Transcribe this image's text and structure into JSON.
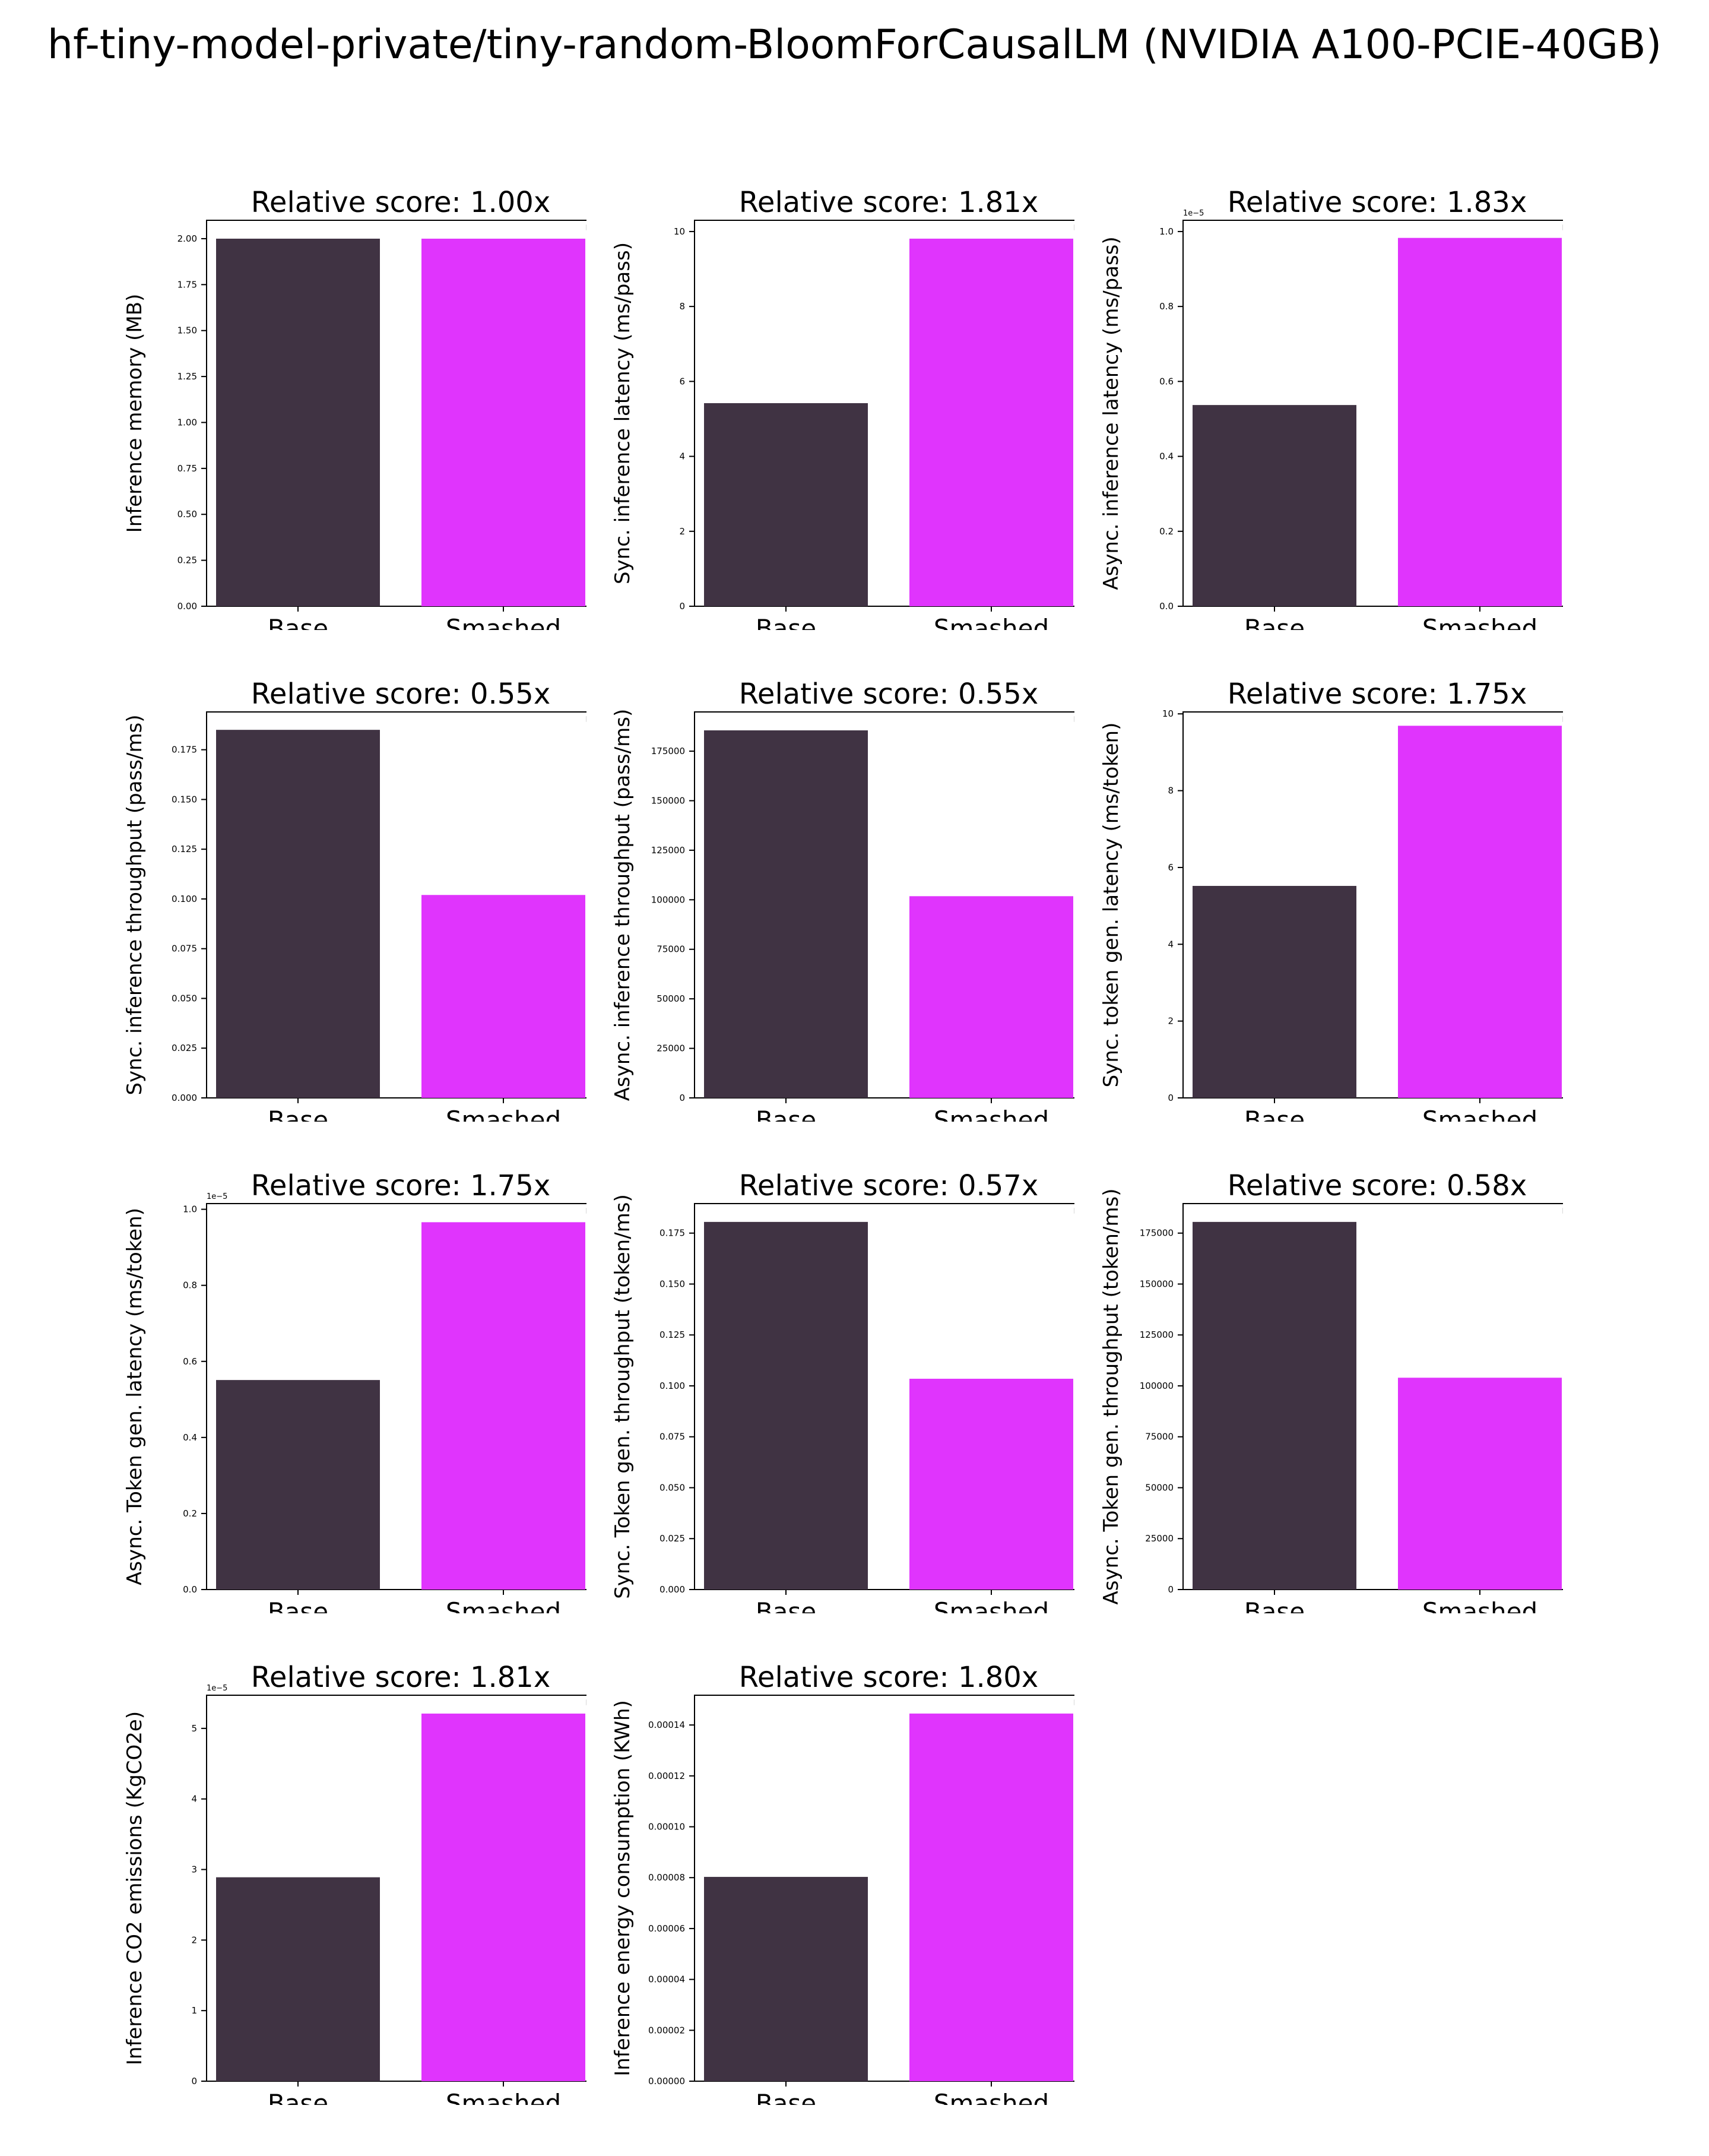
{
  "title": "hf-tiny-model-private/tiny-random-BloomForCausalLM (NVIDIA A100-PCIE-40GB)",
  "colors": {
    "base": "#403343",
    "smashed": "#e034fd"
  },
  "chart_data": [
    {
      "type": "bar",
      "title": "Relative score: 1.00x",
      "categories": [
        "Base",
        "Smashed"
      ],
      "values": [
        2.0,
        2.0
      ],
      "ylabel": "Inference memory (MB)",
      "ylim": [
        0,
        2.1
      ],
      "yticks": [
        0,
        0.25,
        0.5,
        0.75,
        1.0,
        1.25,
        1.5,
        1.75,
        2.0
      ],
      "ytick_labels": [
        "0.00",
        "0.25",
        "0.50",
        "0.75",
        "1.00",
        "1.25",
        "1.50",
        "1.75",
        "2.00"
      ],
      "offset": ""
    },
    {
      "type": "bar",
      "title": "Relative score: 1.81x",
      "categories": [
        "Base",
        "Smashed"
      ],
      "values": [
        5.42,
        9.81
      ],
      "ylabel": "Sync. inference latency (ms/pass)",
      "ylim": [
        0,
        10.3
      ],
      "yticks": [
        0,
        2,
        4,
        6,
        8,
        10
      ],
      "ytick_labels": [
        "0",
        "2",
        "4",
        "6",
        "8",
        "10"
      ],
      "offset": ""
    },
    {
      "type": "bar",
      "title": "Relative score: 1.83x",
      "categories": [
        "Base",
        "Smashed"
      ],
      "values": [
        0.537,
        0.983
      ],
      "ylabel": "Async. inference latency (ms/pass)",
      "ylim": [
        0,
        1.03
      ],
      "yticks": [
        0,
        0.2,
        0.4,
        0.6,
        0.8,
        1.0
      ],
      "ytick_labels": [
        "0.0",
        "0.2",
        "0.4",
        "0.6",
        "0.8",
        "1.0"
      ],
      "offset": "1e−5"
    },
    {
      "type": "bar",
      "title": "Relative score: 0.55x",
      "categories": [
        "Base",
        "Smashed"
      ],
      "values": [
        0.185,
        0.102
      ],
      "ylabel": "Sync. inference throughput (pass/ms)",
      "ylim": [
        0,
        0.194
      ],
      "yticks": [
        0,
        0.025,
        0.05,
        0.075,
        0.1,
        0.125,
        0.15,
        0.175
      ],
      "ytick_labels": [
        "0.000",
        "0.025",
        "0.050",
        "0.075",
        "0.100",
        "0.125",
        "0.150",
        "0.175"
      ],
      "offset": ""
    },
    {
      "type": "bar",
      "title": "Relative score: 0.55x",
      "categories": [
        "Base",
        "Smashed"
      ],
      "values": [
        185500,
        101800
      ],
      "ylabel": "Async. inference throughput (pass/ms)",
      "ylim": [
        0,
        194800
      ],
      "yticks": [
        0,
        25000,
        50000,
        75000,
        100000,
        125000,
        150000,
        175000
      ],
      "ytick_labels": [
        "0",
        "25000",
        "50000",
        "75000",
        "100000",
        "125000",
        "150000",
        "175000"
      ],
      "offset": ""
    },
    {
      "type": "bar",
      "title": "Relative score: 1.75x",
      "categories": [
        "Base",
        "Smashed"
      ],
      "values": [
        5.52,
        9.69
      ],
      "ylabel": "Sync. token gen. latency (ms/token)",
      "ylim": [
        0,
        10.05
      ],
      "yticks": [
        0,
        2,
        4,
        6,
        8,
        10
      ],
      "ytick_labels": [
        "0",
        "2",
        "4",
        "6",
        "8",
        "10"
      ],
      "offset": ""
    },
    {
      "type": "bar",
      "title": "Relative score: 1.75x",
      "categories": [
        "Base",
        "Smashed"
      ],
      "values": [
        0.551,
        0.966
      ],
      "ylabel": "Async. Token gen. latency (ms/token)",
      "ylim": [
        0,
        1.015
      ],
      "yticks": [
        0,
        0.2,
        0.4,
        0.6,
        0.8,
        1.0
      ],
      "ytick_labels": [
        "0.0",
        "0.2",
        "0.4",
        "0.6",
        "0.8",
        "1.0"
      ],
      "offset": "1e−5"
    },
    {
      "type": "bar",
      "title": "Relative score: 0.57x",
      "categories": [
        "Base",
        "Smashed"
      ],
      "values": [
        0.1805,
        0.1035
      ],
      "ylabel": "Sync. Token gen. throughput (token/ms)",
      "ylim": [
        0,
        0.1895
      ],
      "yticks": [
        0,
        0.025,
        0.05,
        0.075,
        0.1,
        0.125,
        0.15,
        0.175
      ],
      "ytick_labels": [
        "0.000",
        "0.025",
        "0.050",
        "0.075",
        "0.100",
        "0.125",
        "0.150",
        "0.175"
      ],
      "offset": ""
    },
    {
      "type": "bar",
      "title": "Relative score: 0.58x",
      "categories": [
        "Base",
        "Smashed"
      ],
      "values": [
        180500,
        104000
      ],
      "ylabel": "Async. Token gen. throughput (token/ms)",
      "ylim": [
        0,
        189500
      ],
      "yticks": [
        0,
        25000,
        50000,
        75000,
        100000,
        125000,
        150000,
        175000
      ],
      "ytick_labels": [
        "0",
        "25000",
        "50000",
        "75000",
        "100000",
        "125000",
        "150000",
        "175000"
      ],
      "offset": ""
    },
    {
      "type": "bar",
      "title": "Relative score: 1.81x",
      "categories": [
        "Base",
        "Smashed"
      ],
      "values": [
        2.89,
        5.21
      ],
      "ylabel": "Inference CO2 emissions (KgCO2e)",
      "ylim": [
        0,
        5.47
      ],
      "yticks": [
        0,
        1,
        2,
        3,
        4,
        5
      ],
      "ytick_labels": [
        "0",
        "1",
        "2",
        "3",
        "4",
        "5"
      ],
      "offset": "1e−5"
    },
    {
      "type": "bar",
      "title": "Relative score: 1.80x",
      "categories": [
        "Base",
        "Smashed"
      ],
      "values": [
        8.03e-05,
        0.0001445
      ],
      "ylabel": "Inference energy consumption (KWh)",
      "ylim": [
        0,
        0.0001517
      ],
      "yticks": [
        0,
        2e-05,
        4e-05,
        6e-05,
        8e-05,
        0.0001,
        0.00012,
        0.00014
      ],
      "ytick_labels": [
        "0.00000",
        "0.00002",
        "0.00004",
        "0.00006",
        "0.00008",
        "0.00010",
        "0.00012",
        "0.00014"
      ],
      "offset": ""
    }
  ]
}
